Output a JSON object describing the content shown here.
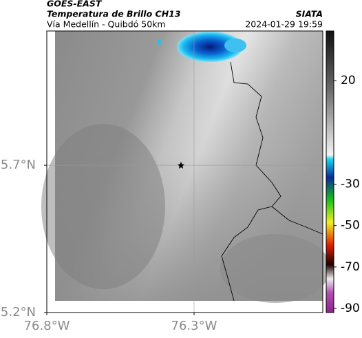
{
  "header": {
    "title": "GOES-EAST",
    "subtitle": "Temperatura de Brillo CH13",
    "source": "SIATA",
    "route": "Vía Medellín - Quibdó 50km",
    "datetime": "2024-01-29 19:59"
  },
  "map": {
    "xlim": [
      -76.8,
      -75.863
    ],
    "ylim": [
      5.2,
      6.156
    ],
    "xticks": [
      {
        "value": -76.8,
        "label": "76.8°W"
      },
      {
        "value": -76.3,
        "label": "76.3°W"
      }
    ],
    "yticks": [
      {
        "value": 5.2,
        "label": "5.2°N"
      },
      {
        "value": 5.7,
        "label": "5.7°N"
      }
    ],
    "grid": true
  },
  "colorbar": {
    "clim": [
      -92,
      44
    ],
    "ticks": [
      20,
      -30,
      -50,
      -70,
      -90
    ]
  }
}
